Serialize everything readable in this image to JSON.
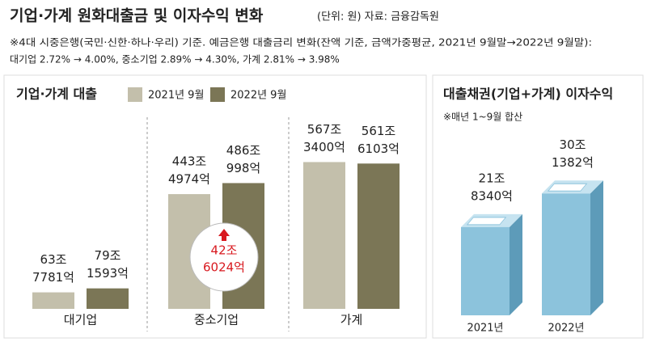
{
  "title": "기업·가계 원화대출금 및 이자수익 변화",
  "unit_source": "(단위: 원) 자료: 금융감독원",
  "notes": [
    "※4대 시중은행(국민·신한·하나·우리) 기준. 예금은행 대출금리 변화(잔액 기준, 금액가중평균, 2021년 9월말→2022년 9월말):",
    "대기업 2.72% → 4.00%, 중소기업 2.89% → 4.30%, 가계 2.81% → 3.98%"
  ],
  "chart_data": [
    {
      "type": "bar",
      "title": "기업·가계 대출",
      "categories": [
        "대기업",
        "중소기업",
        "가계"
      ],
      "series": [
        {
          "name": "2021년 9월",
          "color": "#c3bfab",
          "values": [
            63.7781,
            443.4974,
            567.34
          ],
          "value_labels": [
            [
              "63조",
              "7781억"
            ],
            [
              "443조",
              "4974억"
            ],
            [
              "567조",
              "3400억"
            ]
          ]
        },
        {
          "name": "2022년 9월",
          "color": "#7b7656",
          "values": [
            79.1593,
            486.0998,
            561.6103
          ],
          "value_labels": [
            [
              "79조",
              "1593억"
            ],
            [
              "486조",
              "998억"
            ],
            [
              "561조",
              "6103억"
            ]
          ]
        }
      ],
      "highlight_color": "#d8191f",
      "annotation": [
        "42조",
        "6024억"
      ]
    },
    {
      "type": "bar3d",
      "title": "대출채권(기업+가계) 이자수익",
      "subtitle": "※매년 1~9월 합산",
      "categories": [
        "2021년",
        "2022년"
      ],
      "values": [
        21.834,
        30.1382
      ],
      "value_labels": [
        [
          "21조",
          "8340억"
        ],
        [
          "30조",
          "1382억"
        ]
      ],
      "color": "#8cc3dc"
    }
  ]
}
